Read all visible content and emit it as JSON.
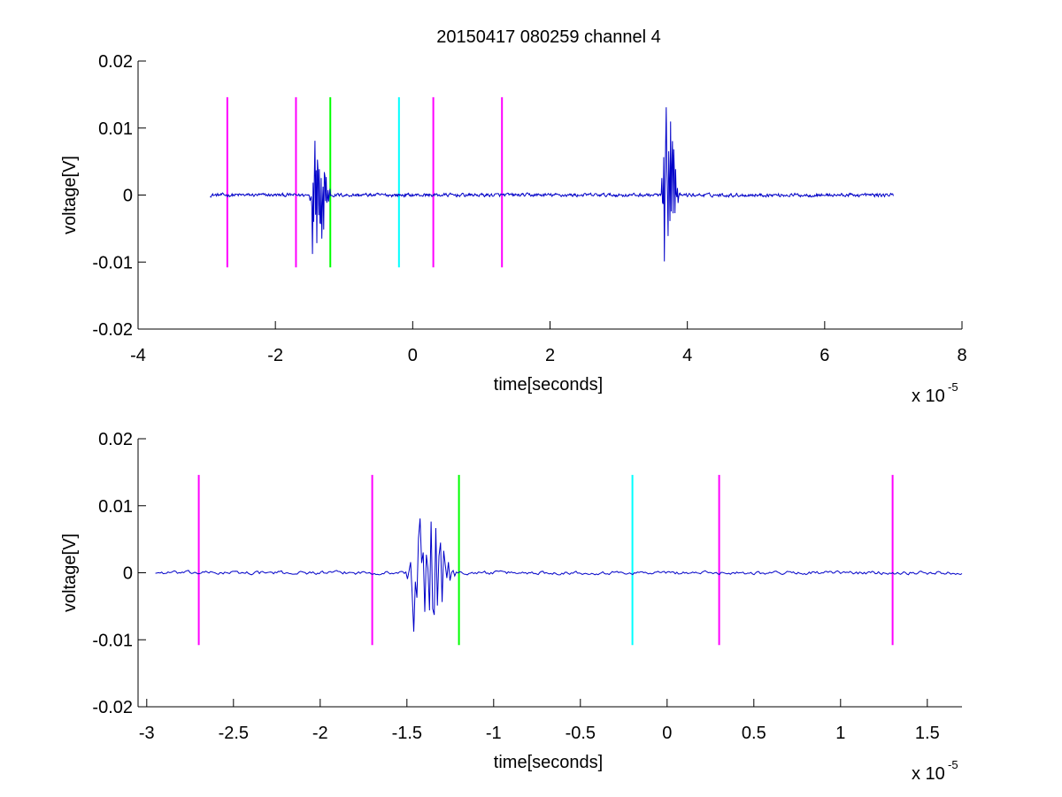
{
  "figure": {
    "title": "20150417 080259 channel 4"
  },
  "colors": {
    "trace": "#0000c8",
    "magenta": "#ff00ff",
    "green": "#00ff00",
    "cyan": "#00ffff",
    "axis": "#000000"
  },
  "chart_data": [
    {
      "type": "line",
      "title": "20150417 080259 channel 4",
      "xlabel": "time[seconds]",
      "ylabel": "voltage[V]",
      "x_exponent_label": "x 10",
      "x_exponent": "-5",
      "xlim": [
        -4,
        8
      ],
      "ylim": [
        -0.02,
        0.02
      ],
      "xticks": [
        -4,
        -2,
        0,
        2,
        4,
        6,
        8
      ],
      "xtick_labels": [
        "-4",
        "-2",
        "0",
        "2",
        "4",
        "6",
        "8"
      ],
      "yticks": [
        0.02,
        0.01,
        0,
        -0.01,
        -0.02
      ],
      "ytick_labels": [
        "0.02",
        "0.01",
        "0",
        "-0.01",
        "-0.02"
      ],
      "grid": false,
      "series": [
        {
          "color": "#0000c8",
          "x_range": [
            -2.95,
            7.0
          ],
          "baseline": 0,
          "noise_amplitude": 0.0004,
          "bursts": [
            {
              "start": -1.5,
              "end": -1.2,
              "peak_max": 0.0081,
              "peak_min": -0.0088
            },
            {
              "start": 3.62,
              "end": 3.88,
              "peak_max": 0.0131,
              "peak_min": -0.0099
            }
          ]
        }
      ],
      "markers": [
        {
          "x": -2.7,
          "y_range": [
            -0.0108,
            0.0146
          ],
          "color": "#ff00ff"
        },
        {
          "x": -1.7,
          "y_range": [
            -0.0108,
            0.0146
          ],
          "color": "#ff00ff"
        },
        {
          "x": -1.2,
          "y_range": [
            -0.0108,
            0.0146
          ],
          "color": "#00ff00"
        },
        {
          "x": -0.2,
          "y_range": [
            -0.0108,
            0.0146
          ],
          "color": "#00ffff"
        },
        {
          "x": 0.3,
          "y_range": [
            -0.0108,
            0.0146
          ],
          "color": "#ff00ff"
        },
        {
          "x": 1.3,
          "y_range": [
            -0.0108,
            0.0146
          ],
          "color": "#ff00ff"
        }
      ]
    },
    {
      "type": "line",
      "xlabel": "time[seconds]",
      "ylabel": "voltage[V]",
      "x_exponent_label": "x 10",
      "x_exponent": "-5",
      "xlim": [
        -3.05,
        1.7
      ],
      "ylim": [
        -0.02,
        0.02
      ],
      "xticks": [
        -3,
        -2.5,
        -2,
        -1.5,
        -1,
        -0.5,
        0,
        0.5,
        1,
        1.5
      ],
      "xtick_labels": [
        "-3",
        "-2.5",
        "-2",
        "-1.5",
        "-1",
        "-0.5",
        "0",
        "0.5",
        "1",
        "1.5"
      ],
      "yticks": [
        0.02,
        0.01,
        0,
        -0.01,
        -0.02
      ],
      "ytick_labels": [
        "0.02",
        "0.01",
        "0",
        "-0.01",
        "-0.02"
      ],
      "grid": false,
      "series": [
        {
          "color": "#0000c8",
          "x_range": [
            -2.95,
            1.7
          ],
          "baseline": 0,
          "noise_amplitude": 0.0004,
          "bursts": [
            {
              "start": -1.5,
              "end": -1.2,
              "peak_max": 0.0081,
              "peak_min": -0.0088
            }
          ]
        }
      ],
      "markers": [
        {
          "x": -2.7,
          "y_range": [
            -0.0108,
            0.0146
          ],
          "color": "#ff00ff"
        },
        {
          "x": -1.7,
          "y_range": [
            -0.0108,
            0.0146
          ],
          "color": "#ff00ff"
        },
        {
          "x": -1.2,
          "y_range": [
            -0.0108,
            0.0146
          ],
          "color": "#00ff00"
        },
        {
          "x": -0.2,
          "y_range": [
            -0.0108,
            0.0146
          ],
          "color": "#00ffff"
        },
        {
          "x": 0.3,
          "y_range": [
            -0.0108,
            0.0146
          ],
          "color": "#ff00ff"
        },
        {
          "x": 1.3,
          "y_range": [
            -0.0108,
            0.0146
          ],
          "color": "#ff00ff"
        }
      ]
    }
  ]
}
